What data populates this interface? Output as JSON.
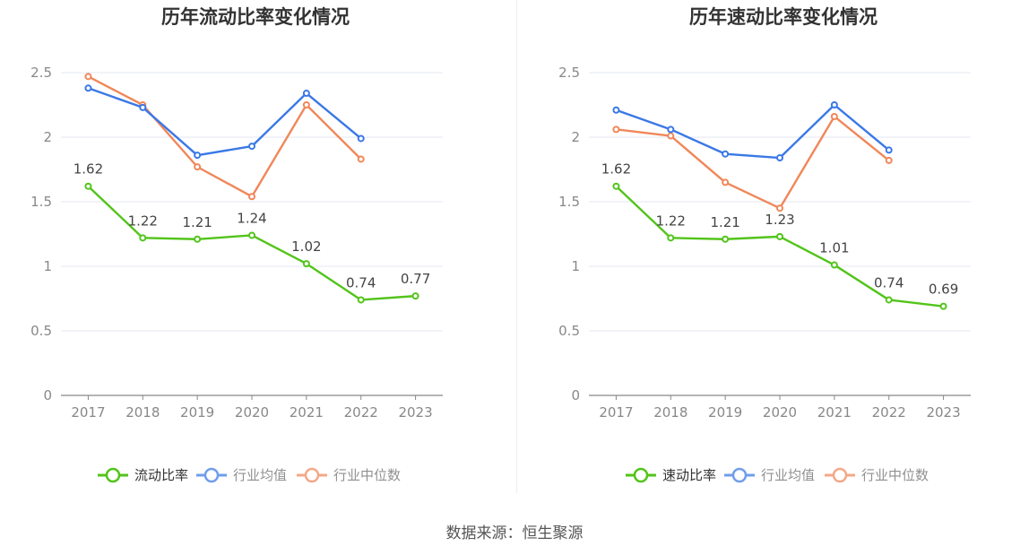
{
  "source": "数据来源：恒生聚源",
  "charts": [
    {
      "type": "line",
      "title": "历年流动比率变化情况",
      "categories": [
        "2017",
        "2018",
        "2019",
        "2020",
        "2021",
        "2022",
        "2023"
      ],
      "y_axis": {
        "min": 0,
        "max": 2.5,
        "ticks": [
          "0",
          "0.5",
          "1",
          "1.5",
          "2",
          "2.5"
        ]
      },
      "legend_position": "bottom",
      "grid": true,
      "series": [
        {
          "name": "流动比率",
          "color": "#52c41a",
          "labels": true,
          "values": [
            1.62,
            1.22,
            1.21,
            1.24,
            1.02,
            0.74,
            0.77
          ]
        },
        {
          "name": "行业均值",
          "color": "#3a78e6",
          "labels": false,
          "values": [
            2.38,
            2.23,
            1.86,
            1.93,
            2.34,
            1.99,
            null
          ]
        },
        {
          "name": "行业中位数",
          "color": "#f0875a",
          "labels": false,
          "values": [
            2.47,
            2.25,
            1.77,
            1.54,
            2.25,
            1.83,
            null
          ]
        }
      ]
    },
    {
      "type": "line",
      "title": "历年速动比率变化情况",
      "categories": [
        "2017",
        "2018",
        "2019",
        "2020",
        "2021",
        "2022",
        "2023"
      ],
      "y_axis": {
        "min": 0,
        "max": 2.5,
        "ticks": [
          "0",
          "0.5",
          "1",
          "1.5",
          "2",
          "2.5"
        ]
      },
      "legend_position": "bottom",
      "grid": true,
      "series": [
        {
          "name": "速动比率",
          "color": "#52c41a",
          "labels": true,
          "values": [
            1.62,
            1.22,
            1.21,
            1.23,
            1.01,
            0.74,
            0.69
          ]
        },
        {
          "name": "行业均值",
          "color": "#3a78e6",
          "labels": false,
          "values": [
            2.21,
            2.06,
            1.87,
            1.84,
            2.25,
            1.9,
            null
          ]
        },
        {
          "name": "行业中位数",
          "color": "#f0875a",
          "labels": false,
          "values": [
            2.06,
            2.01,
            1.65,
            1.45,
            2.16,
            1.82,
            null
          ]
        }
      ]
    }
  ],
  "chart_data": [
    {
      "type": "line",
      "title": "历年流动比率变化情况",
      "x": [
        "2017",
        "2018",
        "2019",
        "2020",
        "2021",
        "2022",
        "2023"
      ],
      "ylim": [
        0,
        2.5
      ],
      "grid": true,
      "legend": "bottom",
      "series": [
        {
          "name": "流动比率",
          "values": [
            1.62,
            1.22,
            1.21,
            1.24,
            1.02,
            0.74,
            0.77
          ]
        },
        {
          "name": "行业均值",
          "values": [
            2.38,
            2.23,
            1.86,
            1.93,
            2.34,
            1.99,
            null
          ]
        },
        {
          "name": "行业中位数",
          "values": [
            2.47,
            2.25,
            1.77,
            1.54,
            2.25,
            1.83,
            null
          ]
        }
      ]
    },
    {
      "type": "line",
      "title": "历年速动比率变化情况",
      "x": [
        "2017",
        "2018",
        "2019",
        "2020",
        "2021",
        "2022",
        "2023"
      ],
      "ylim": [
        0,
        2.5
      ],
      "grid": true,
      "legend": "bottom",
      "series": [
        {
          "name": "速动比率",
          "values": [
            1.62,
            1.22,
            1.21,
            1.23,
            1.01,
            0.74,
            0.69
          ]
        },
        {
          "name": "行业均值",
          "values": [
            2.21,
            2.06,
            1.87,
            1.84,
            2.25,
            1.9,
            null
          ]
        },
        {
          "name": "行业中位数",
          "values": [
            2.06,
            2.01,
            1.65,
            1.45,
            2.16,
            1.82,
            null
          ]
        }
      ]
    }
  ]
}
